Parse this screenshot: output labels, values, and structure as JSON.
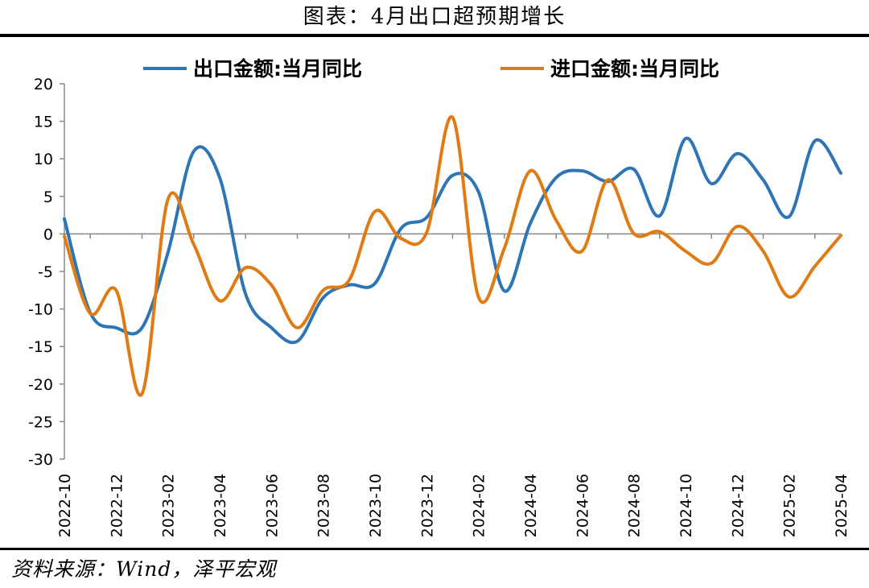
{
  "title": "图表：4月出口超预期增长",
  "source": "资料来源：Wind，泽平宏观",
  "chart_data": {
    "type": "line",
    "ylim": [
      -30,
      20
    ],
    "yticks": [
      20,
      15,
      10,
      5,
      0,
      -5,
      -10,
      -15,
      -20,
      -25,
      -30
    ],
    "x": [
      "2022-10",
      "2022-11",
      "2022-12",
      "2023-01",
      "2023-02",
      "2023-03",
      "2023-04",
      "2023-05",
      "2023-06",
      "2023-07",
      "2023-08",
      "2023-09",
      "2023-10",
      "2023-11",
      "2023-12",
      "2024-01",
      "2024-02",
      "2024-03",
      "2024-04",
      "2024-05",
      "2024-06",
      "2024-07",
      "2024-08",
      "2024-09",
      "2024-10",
      "2024-11",
      "2024-12",
      "2025-01",
      "2025-02",
      "2025-03",
      "2025-04"
    ],
    "xtick_labels": [
      "2022-10",
      "2022-12",
      "2023-02",
      "2023-04",
      "2023-06",
      "2023-08",
      "2023-10",
      "2023-12",
      "2024-02",
      "2024-04",
      "2024-06",
      "2024-08",
      "2024-10",
      "2024-12",
      "2025-02",
      "2025-04"
    ],
    "legend_position": "top",
    "grid": false,
    "series": [
      {
        "name": "出口金额:当月同比",
        "color": "#2E75B6",
        "values": [
          2.0,
          -10.5,
          -12.5,
          -12.5,
          -2.5,
          11.0,
          7.5,
          -8.0,
          -12.5,
          -14.3,
          -8.5,
          -6.8,
          -6.6,
          0.7,
          2.2,
          7.8,
          5.6,
          -7.6,
          1.4,
          7.5,
          8.4,
          7.0,
          8.6,
          2.4,
          12.7,
          6.7,
          10.7,
          7.2,
          2.3,
          12.4,
          8.1
        ]
      },
      {
        "name": "进口金额:当月同比",
        "color": "#E07B14",
        "values": [
          -0.3,
          -10.6,
          -7.5,
          -21.3,
          4.6,
          -1.4,
          -8.9,
          -4.5,
          -6.8,
          -12.5,
          -7.5,
          -6.2,
          3.0,
          -0.6,
          0.2,
          15.5,
          -8.4,
          -1.9,
          8.4,
          1.8,
          -2.3,
          7.2,
          0.05,
          0.3,
          -2.3,
          -3.9,
          1.0,
          -2.3,
          -8.4,
          -4.3,
          -0.2
        ]
      }
    ]
  }
}
